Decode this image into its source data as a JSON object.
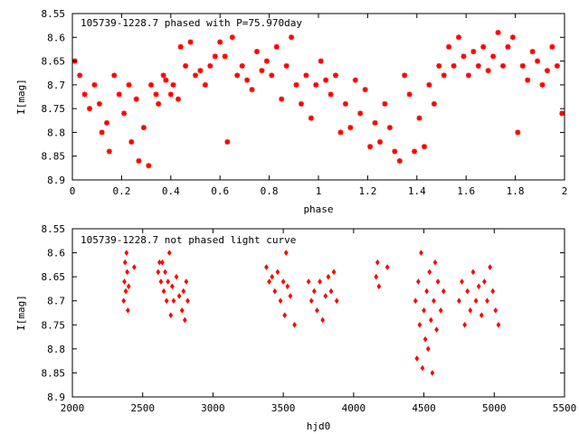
{
  "colors": {
    "points": "#ff0000",
    "axes": "#000000",
    "background": "#ffffff"
  },
  "chart_data": [
    {
      "type": "scatter",
      "title": "105739-1228.7 phased with P=75.970day",
      "xlabel": "phase",
      "ylabel": "I[mag]",
      "xlim": [
        0,
        2
      ],
      "ylim": [
        8.55,
        8.9
      ],
      "y_inverted": true,
      "grid": false,
      "marker": "star",
      "x_ticks": [
        "0",
        "0.2",
        "0.4",
        "0.6",
        "0.8",
        "1",
        "1.2",
        "1.4",
        "1.6",
        "1.8",
        "2"
      ],
      "y_ticks": [
        "8.55",
        "8.6",
        "8.65",
        "8.7",
        "8.75",
        "8.8",
        "8.85",
        "8.9"
      ],
      "series": [
        {
          "points": [
            [
              0.01,
              8.65
            ],
            [
              0.03,
              8.68
            ],
            [
              0.05,
              8.72
            ],
            [
              0.07,
              8.75
            ],
            [
              0.09,
              8.7
            ],
            [
              0.11,
              8.74
            ],
            [
              0.12,
              8.8
            ],
            [
              0.14,
              8.78
            ],
            [
              0.15,
              8.84
            ],
            [
              0.17,
              8.68
            ],
            [
              0.19,
              8.72
            ],
            [
              0.21,
              8.76
            ],
            [
              0.23,
              8.7
            ],
            [
              0.24,
              8.82
            ],
            [
              0.26,
              8.73
            ],
            [
              0.27,
              8.86
            ],
            [
              0.29,
              8.79
            ],
            [
              0.31,
              8.87
            ],
            [
              0.32,
              8.7
            ],
            [
              0.34,
              8.72
            ],
            [
              0.35,
              8.74
            ],
            [
              0.37,
              8.68
            ],
            [
              0.38,
              8.69
            ],
            [
              0.4,
              8.72
            ],
            [
              0.41,
              8.7
            ],
            [
              0.43,
              8.73
            ],
            [
              0.44,
              8.62
            ],
            [
              0.46,
              8.66
            ],
            [
              0.48,
              8.61
            ],
            [
              0.5,
              8.68
            ],
            [
              0.52,
              8.67
            ],
            [
              0.54,
              8.7
            ],
            [
              0.56,
              8.66
            ],
            [
              0.58,
              8.64
            ],
            [
              0.6,
              8.61
            ],
            [
              0.62,
              8.64
            ],
            [
              0.63,
              8.82
            ],
            [
              0.65,
              8.6
            ],
            [
              0.67,
              8.68
            ],
            [
              0.69,
              8.66
            ],
            [
              0.71,
              8.69
            ],
            [
              0.73,
              8.71
            ],
            [
              0.75,
              8.63
            ],
            [
              0.77,
              8.67
            ],
            [
              0.79,
              8.65
            ],
            [
              0.81,
              8.68
            ],
            [
              0.83,
              8.62
            ],
            [
              0.85,
              8.73
            ],
            [
              0.87,
              8.66
            ],
            [
              0.89,
              8.6
            ],
            [
              0.91,
              8.7
            ],
            [
              0.93,
              8.74
            ],
            [
              0.95,
              8.68
            ],
            [
              0.97,
              8.77
            ],
            [
              0.99,
              8.7
            ],
            [
              1.01,
              8.65
            ],
            [
              1.03,
              8.69
            ],
            [
              1.05,
              8.72
            ],
            [
              1.07,
              8.68
            ],
            [
              1.09,
              8.8
            ],
            [
              1.11,
              8.74
            ],
            [
              1.13,
              8.79
            ],
            [
              1.15,
              8.69
            ],
            [
              1.17,
              8.76
            ],
            [
              1.19,
              8.71
            ],
            [
              1.21,
              8.83
            ],
            [
              1.23,
              8.78
            ],
            [
              1.25,
              8.82
            ],
            [
              1.27,
              8.74
            ],
            [
              1.29,
              8.79
            ],
            [
              1.31,
              8.84
            ],
            [
              1.33,
              8.86
            ],
            [
              1.35,
              8.68
            ],
            [
              1.37,
              8.72
            ],
            [
              1.39,
              8.84
            ],
            [
              1.41,
              8.77
            ],
            [
              1.43,
              8.83
            ],
            [
              1.45,
              8.7
            ],
            [
              1.47,
              8.74
            ],
            [
              1.49,
              8.66
            ],
            [
              1.51,
              8.68
            ],
            [
              1.53,
              8.62
            ],
            [
              1.55,
              8.66
            ],
            [
              1.57,
              8.6
            ],
            [
              1.59,
              8.64
            ],
            [
              1.61,
              8.68
            ],
            [
              1.63,
              8.63
            ],
            [
              1.65,
              8.66
            ],
            [
              1.67,
              8.62
            ],
            [
              1.69,
              8.67
            ],
            [
              1.71,
              8.64
            ],
            [
              1.73,
              8.59
            ],
            [
              1.75,
              8.66
            ],
            [
              1.77,
              8.62
            ],
            [
              1.79,
              8.6
            ],
            [
              1.81,
              8.8
            ],
            [
              1.83,
              8.66
            ],
            [
              1.85,
              8.69
            ],
            [
              1.87,
              8.63
            ],
            [
              1.89,
              8.65
            ],
            [
              1.91,
              8.7
            ],
            [
              1.93,
              8.67
            ],
            [
              1.95,
              8.62
            ],
            [
              1.97,
              8.66
            ],
            [
              1.99,
              8.76
            ]
          ]
        }
      ]
    },
    {
      "type": "scatter",
      "title": "105739-1228.7 not phased light curve",
      "xlabel": "hjd0",
      "ylabel": "I[mag]",
      "xlim": [
        2000,
        5500
      ],
      "ylim": [
        8.55,
        8.9
      ],
      "y_inverted": true,
      "grid": false,
      "marker": "diamond",
      "x_ticks": [
        "2000",
        "2500",
        "3000",
        "3500",
        "4000",
        "4500",
        "5000",
        "5500"
      ],
      "y_ticks": [
        "8.55",
        "8.6",
        "8.65",
        "8.7",
        "8.75",
        "8.8",
        "8.85",
        "8.9"
      ],
      "series": [
        {
          "points": [
            [
              2365,
              8.7
            ],
            [
              2370,
              8.66
            ],
            [
              2375,
              8.62
            ],
            [
              2380,
              8.68
            ],
            [
              2385,
              8.6
            ],
            [
              2390,
              8.64
            ],
            [
              2395,
              8.72
            ],
            [
              2400,
              8.67
            ],
            [
              2440,
              8.63
            ],
            [
              2610,
              8.64
            ],
            [
              2620,
              8.62
            ],
            [
              2630,
              8.66
            ],
            [
              2640,
              8.62
            ],
            [
              2650,
              8.68
            ],
            [
              2660,
              8.64
            ],
            [
              2670,
              8.7
            ],
            [
              2680,
              8.66
            ],
            [
              2690,
              8.6
            ],
            [
              2700,
              8.73
            ],
            [
              2710,
              8.67
            ],
            [
              2720,
              8.7
            ],
            [
              2740,
              8.65
            ],
            [
              2760,
              8.69
            ],
            [
              2780,
              8.72
            ],
            [
              2790,
              8.68
            ],
            [
              2800,
              8.74
            ],
            [
              2810,
              8.66
            ],
            [
              2820,
              8.7
            ],
            [
              3380,
              8.63
            ],
            [
              3400,
              8.66
            ],
            [
              3420,
              8.65
            ],
            [
              3440,
              8.68
            ],
            [
              3460,
              8.64
            ],
            [
              3480,
              8.7
            ],
            [
              3500,
              8.66
            ],
            [
              3510,
              8.73
            ],
            [
              3520,
              8.6
            ],
            [
              3530,
              8.67
            ],
            [
              3550,
              8.69
            ],
            [
              3580,
              8.75
            ],
            [
              3680,
              8.66
            ],
            [
              3700,
              8.7
            ],
            [
              3720,
              8.68
            ],
            [
              3740,
              8.72
            ],
            [
              3760,
              8.66
            ],
            [
              3780,
              8.74
            ],
            [
              3800,
              8.69
            ],
            [
              3820,
              8.65
            ],
            [
              3840,
              8.68
            ],
            [
              3860,
              8.64
            ],
            [
              3880,
              8.7
            ],
            [
              4160,
              8.65
            ],
            [
              4170,
              8.62
            ],
            [
              4180,
              8.67
            ],
            [
              4240,
              8.63
            ],
            [
              4440,
              8.7
            ],
            [
              4450,
              8.82
            ],
            [
              4460,
              8.66
            ],
            [
              4470,
              8.75
            ],
            [
              4480,
              8.6
            ],
            [
              4490,
              8.84
            ],
            [
              4500,
              8.72
            ],
            [
              4510,
              8.78
            ],
            [
              4520,
              8.68
            ],
            [
              4530,
              8.8
            ],
            [
              4540,
              8.64
            ],
            [
              4550,
              8.74
            ],
            [
              4560,
              8.85
            ],
            [
              4570,
              8.7
            ],
            [
              4580,
              8.62
            ],
            [
              4590,
              8.76
            ],
            [
              4600,
              8.66
            ],
            [
              4620,
              8.72
            ],
            [
              4640,
              8.68
            ],
            [
              4750,
              8.7
            ],
            [
              4770,
              8.66
            ],
            [
              4790,
              8.75
            ],
            [
              4810,
              8.68
            ],
            [
              4830,
              8.72
            ],
            [
              4850,
              8.64
            ],
            [
              4870,
              8.7
            ],
            [
              4890,
              8.67
            ],
            [
              4910,
              8.73
            ],
            [
              4930,
              8.66
            ],
            [
              4950,
              8.7
            ],
            [
              4970,
              8.63
            ],
            [
              4990,
              8.68
            ],
            [
              5010,
              8.72
            ],
            [
              5030,
              8.75
            ]
          ]
        }
      ]
    }
  ]
}
